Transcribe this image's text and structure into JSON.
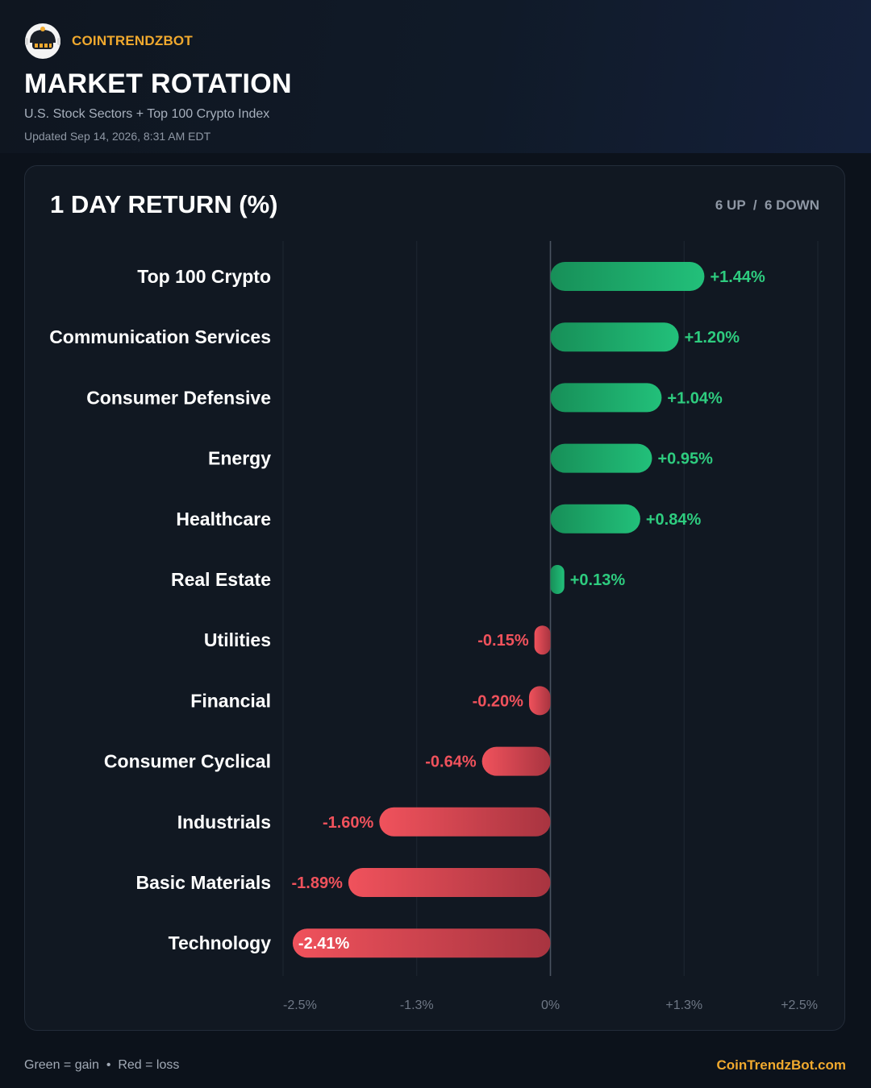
{
  "brand": {
    "name": "COINTRENDZBOT",
    "logo_icon": "robot-icon"
  },
  "header": {
    "title": "MARKET ROTATION",
    "subtitle": "U.S. Stock Sectors + Top 100 Crypto Index",
    "updated": "Updated Sep 14, 2026, 8:31 AM EDT"
  },
  "card": {
    "title": "1 DAY RETURN (%)",
    "up_count": "6 UP",
    "separator": "/",
    "down_count": "6 DOWN"
  },
  "chart_data": {
    "type": "bar",
    "orientation": "horizontal",
    "categories": [
      "Top 100 Crypto",
      "Communication Services",
      "Consumer Defensive",
      "Energy",
      "Healthcare",
      "Real Estate",
      "Utilities",
      "Financial",
      "Consumer Cyclical",
      "Industrials",
      "Basic Materials",
      "Technology"
    ],
    "values": [
      1.44,
      1.2,
      1.04,
      0.95,
      0.84,
      0.13,
      -0.15,
      -0.2,
      -0.64,
      -1.6,
      -1.89,
      -2.41
    ],
    "value_labels": [
      "+1.44%",
      "+1.20%",
      "+1.04%",
      "+0.95%",
      "+0.84%",
      "+0.13%",
      "-0.15%",
      "-0.20%",
      "-0.64%",
      "-1.60%",
      "-1.89%",
      "-2.41%"
    ],
    "xlim": [
      -2.5,
      2.5
    ],
    "x_ticks": [
      -2.5,
      -1.25,
      0,
      1.25,
      2.5
    ],
    "x_tick_labels": [
      "-2.5%",
      "-1.3%",
      "0%",
      "+1.3%",
      "+2.5%"
    ],
    "grid": true,
    "colors": {
      "gain": "#22c07a",
      "gain_dark": "#178f58",
      "loss": "#f0525c",
      "loss_dark": "#a83440",
      "gain_text": "#2ecc7f",
      "loss_text": "#f0525c"
    }
  },
  "footer": {
    "legend": "Green = gain  •  Red = loss",
    "site": "CoinTrendzBot.com"
  }
}
